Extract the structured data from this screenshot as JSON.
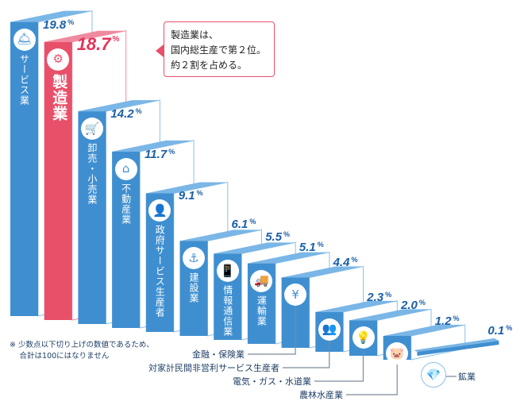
{
  "chart_data": {
    "type": "bar",
    "title": "",
    "unit": "%",
    "bars": [
      {
        "label": "サービス業",
        "value": 19.8,
        "display": "19.8",
        "icon": "cloche-icon",
        "glyph": "🛎",
        "highlight": false,
        "label_inside": true
      },
      {
        "label": "製造業",
        "value": 18.7,
        "display": "18.7",
        "icon": "gear-icon",
        "glyph": "⚙",
        "highlight": true,
        "label_inside": true
      },
      {
        "label": "卸売・小売業",
        "value": 14.2,
        "display": "14.2",
        "icon": "shopping-cart-icon",
        "glyph": "🛒",
        "highlight": false,
        "label_inside": true
      },
      {
        "label": "不動産業",
        "value": 11.7,
        "display": "11.7",
        "icon": "house-icon",
        "glyph": "⌂",
        "highlight": false,
        "label_inside": true
      },
      {
        "label": "政府サービス生産者",
        "value": 9.1,
        "display": "9.1",
        "icon": "person-icon",
        "glyph": "👤",
        "highlight": false,
        "label_inside": true
      },
      {
        "label": "建設業",
        "value": 6.1,
        "display": "6.1",
        "icon": "crane-hook-icon",
        "glyph": "⚓",
        "highlight": false,
        "label_inside": true
      },
      {
        "label": "情報通信業",
        "value": 5.5,
        "display": "5.5",
        "icon": "smartphone-icon",
        "glyph": "📱",
        "highlight": false,
        "label_inside": true
      },
      {
        "label": "運輸業",
        "value": 5.1,
        "display": "5.1",
        "icon": "truck-icon",
        "glyph": "🚚",
        "highlight": false,
        "label_inside": true
      },
      {
        "label": "金融・保険業",
        "value": 4.4,
        "display": "4.4",
        "icon": "money-bag-icon",
        "glyph": "¥",
        "highlight": false,
        "label_inside": false
      },
      {
        "label": "対家計民間非営利サービス生産者",
        "value": 2.3,
        "display": "2.3",
        "icon": "people-group-icon",
        "glyph": "👥",
        "highlight": false,
        "label_inside": false
      },
      {
        "label": "電気・ガス・水道業",
        "value": 2.0,
        "display": "2.0",
        "icon": "light-bulb-icon",
        "glyph": "💡",
        "highlight": false,
        "label_inside": false
      },
      {
        "label": "農林水産業",
        "value": 1.2,
        "display": "1.2",
        "icon": "pig-icon",
        "glyph": "🐷",
        "highlight": false,
        "label_inside": false
      },
      {
        "label": "鉱業",
        "value": 0.1,
        "display": "0.1",
        "icon": "diamond-icon",
        "glyph": "💎",
        "highlight": false,
        "label_inside": false
      }
    ]
  },
  "callout": {
    "lines": [
      "製造業は、",
      "国内総生産で第２位。",
      "約２割を占める。"
    ]
  },
  "note": {
    "lines": [
      "※ 少数点以下切り上げの数値であるため、",
      "　 合計は100にはなりません"
    ]
  },
  "colors": {
    "front": "#3f8fd0",
    "top": "#7ab6e6",
    "side_stroke": "#8cc0ea",
    "highlight_front": "#e8506a",
    "highlight_top": "#f08aa0",
    "label_text": "#1b5fa8",
    "highlight_text": "#e6345a"
  }
}
